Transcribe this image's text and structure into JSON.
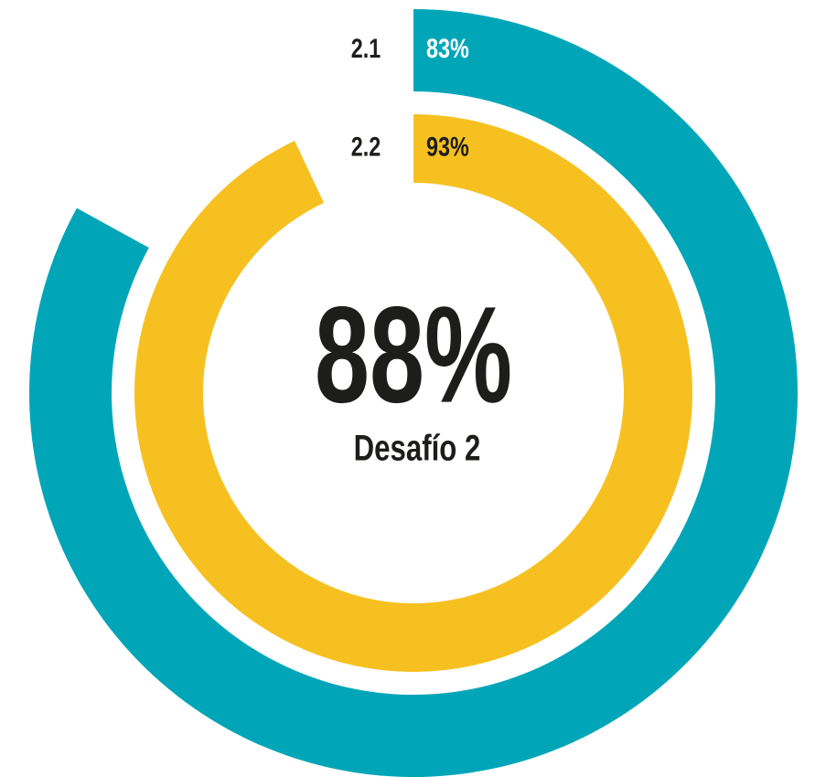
{
  "chart_data": {
    "type": "radial_bar",
    "categories": [
      "2.1",
      "2.2"
    ],
    "values": [
      83,
      93
    ],
    "value_labels": [
      "83%",
      "93%"
    ],
    "colors": [
      "#00a6b8",
      "#f6c120"
    ],
    "label_colors": [
      "#ffffff",
      "#1d1d1b"
    ],
    "ylim": [
      0,
      100
    ],
    "center_text": "88%",
    "subtitle": "Desafío 2"
  }
}
